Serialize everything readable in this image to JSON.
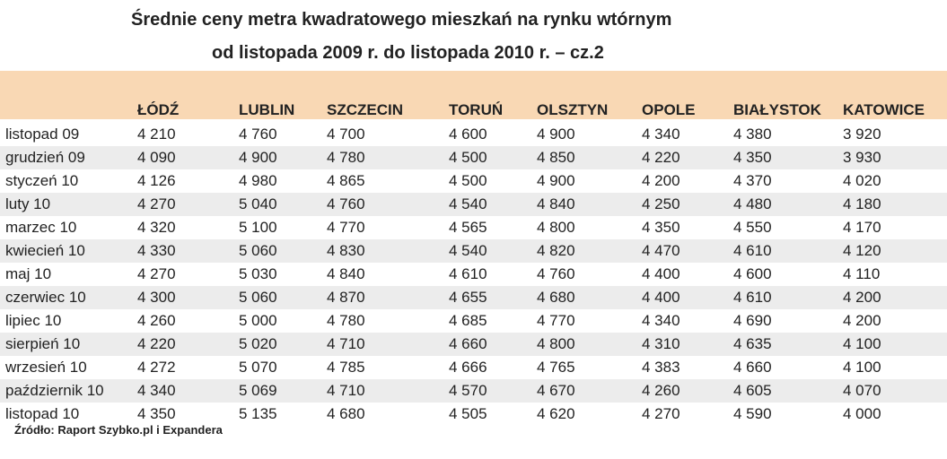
{
  "title_line1": "Średnie ceny metra kwadratowego mieszkań na rynku wtórnym",
  "title_line2": "od listopada 2009 r. do listopada 2010 r. – cz.2",
  "columns": [
    "",
    "ŁÓDŹ",
    "LUBLIN",
    "SZCZECIN",
    "TORUŃ",
    "OLSZTYN",
    "OPOLE",
    "BIAŁYSTOK",
    "KATOWICE"
  ],
  "rows": [
    [
      "listopad 09",
      "4 210",
      "4 760",
      "4 700",
      "4 600",
      "4 900",
      "4 340",
      "4 380",
      "3 920"
    ],
    [
      "grudzień 09",
      "4 090",
      "4 900",
      "4 780",
      "4 500",
      "4 850",
      "4 220",
      "4 350",
      "3 930"
    ],
    [
      "styczeń 10",
      "4 126",
      "4 980",
      "4 865",
      "4 500",
      "4 900",
      "4 200",
      "4 370",
      "4 020"
    ],
    [
      "luty 10",
      "4 270",
      "5 040",
      "4 760",
      "4 540",
      "4 840",
      "4 250",
      "4 480",
      "4 180"
    ],
    [
      "marzec 10",
      "4 320",
      "5 100",
      "4 770",
      "4 565",
      "4 800",
      "4 350",
      "4 550",
      "4 170"
    ],
    [
      "kwiecień 10",
      "4 330",
      "5 060",
      "4 830",
      "4 540",
      "4 820",
      "4 470",
      "4 610",
      "4 120"
    ],
    [
      "maj 10",
      "4 270",
      "5 030",
      "4 840",
      "4 610",
      "4 760",
      "4 400",
      "4 600",
      "4 110"
    ],
    [
      "czerwiec 10",
      "4 300",
      "5 060",
      "4 870",
      "4 655",
      "4 680",
      "4 400",
      "4 610",
      "4 200"
    ],
    [
      "lipiec 10",
      "4 260",
      "5 000",
      "4 780",
      "4 685",
      "4 770",
      "4 340",
      "4 690",
      "4 200"
    ],
    [
      "sierpień 10",
      "4 220",
      "5 020",
      "4 710",
      "4 660",
      "4 800",
      "4 310",
      "4 635",
      "4 100"
    ],
    [
      "wrzesień 10",
      "4 272",
      "5 070",
      "4 785",
      "4 666",
      "4 765",
      "4 383",
      "4 660",
      "4 100"
    ],
    [
      "październik 10",
      "4 340",
      "5 069",
      "4 710",
      "4 570",
      "4 670",
      "4 260",
      "4 605",
      "4 070"
    ],
    [
      "listopad 10",
      "4 350",
      "5 135",
      "4 680",
      "4 505",
      "4 620",
      "4 270",
      "4 590",
      "4 000"
    ]
  ],
  "source": "Źródło: Raport Szybko.pl i Expandera",
  "colors": {
    "header_bg": "#f9d8b4",
    "stripe_bg": "#ececec"
  }
}
